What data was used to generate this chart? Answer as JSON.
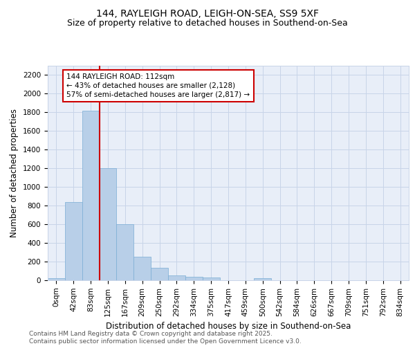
{
  "title1": "144, RAYLEIGH ROAD, LEIGH-ON-SEA, SS9 5XF",
  "title2": "Size of property relative to detached houses in Southend-on-Sea",
  "xlabel": "Distribution of detached houses by size in Southend-on-Sea",
  "ylabel": "Number of detached properties",
  "bin_labels": [
    "0sqm",
    "42sqm",
    "83sqm",
    "125sqm",
    "167sqm",
    "209sqm",
    "250sqm",
    "292sqm",
    "334sqm",
    "375sqm",
    "417sqm",
    "459sqm",
    "500sqm",
    "542sqm",
    "584sqm",
    "626sqm",
    "667sqm",
    "709sqm",
    "751sqm",
    "792sqm",
    "834sqm"
  ],
  "bar_values": [
    25,
    840,
    1820,
    1200,
    600,
    255,
    130,
    50,
    40,
    28,
    0,
    0,
    20,
    0,
    0,
    0,
    0,
    0,
    0,
    0,
    0
  ],
  "bar_color": "#b8cfe8",
  "bar_edge_color": "#7aadd4",
  "vline_color": "#cc0000",
  "annotation_line1": "144 RAYLEIGH ROAD: 112sqm",
  "annotation_line2": "← 43% of detached houses are smaller (2,128)",
  "annotation_line3": "57% of semi-detached houses are larger (2,817) →",
  "annotation_box_edgecolor": "#cc0000",
  "annotation_box_facecolor": "white",
  "ylim": [
    0,
    2300
  ],
  "yticks": [
    0,
    200,
    400,
    600,
    800,
    1000,
    1200,
    1400,
    1600,
    1800,
    2000,
    2200
  ],
  "grid_color": "#c8d4e8",
  "background_color": "#e8eef8",
  "footer_text": "Contains HM Land Registry data © Crown copyright and database right 2025.\nContains public sector information licensed under the Open Government Licence v3.0.",
  "title1_fontsize": 10,
  "title2_fontsize": 9,
  "xlabel_fontsize": 8.5,
  "ylabel_fontsize": 8.5,
  "tick_fontsize": 7.5,
  "footer_fontsize": 6.5
}
